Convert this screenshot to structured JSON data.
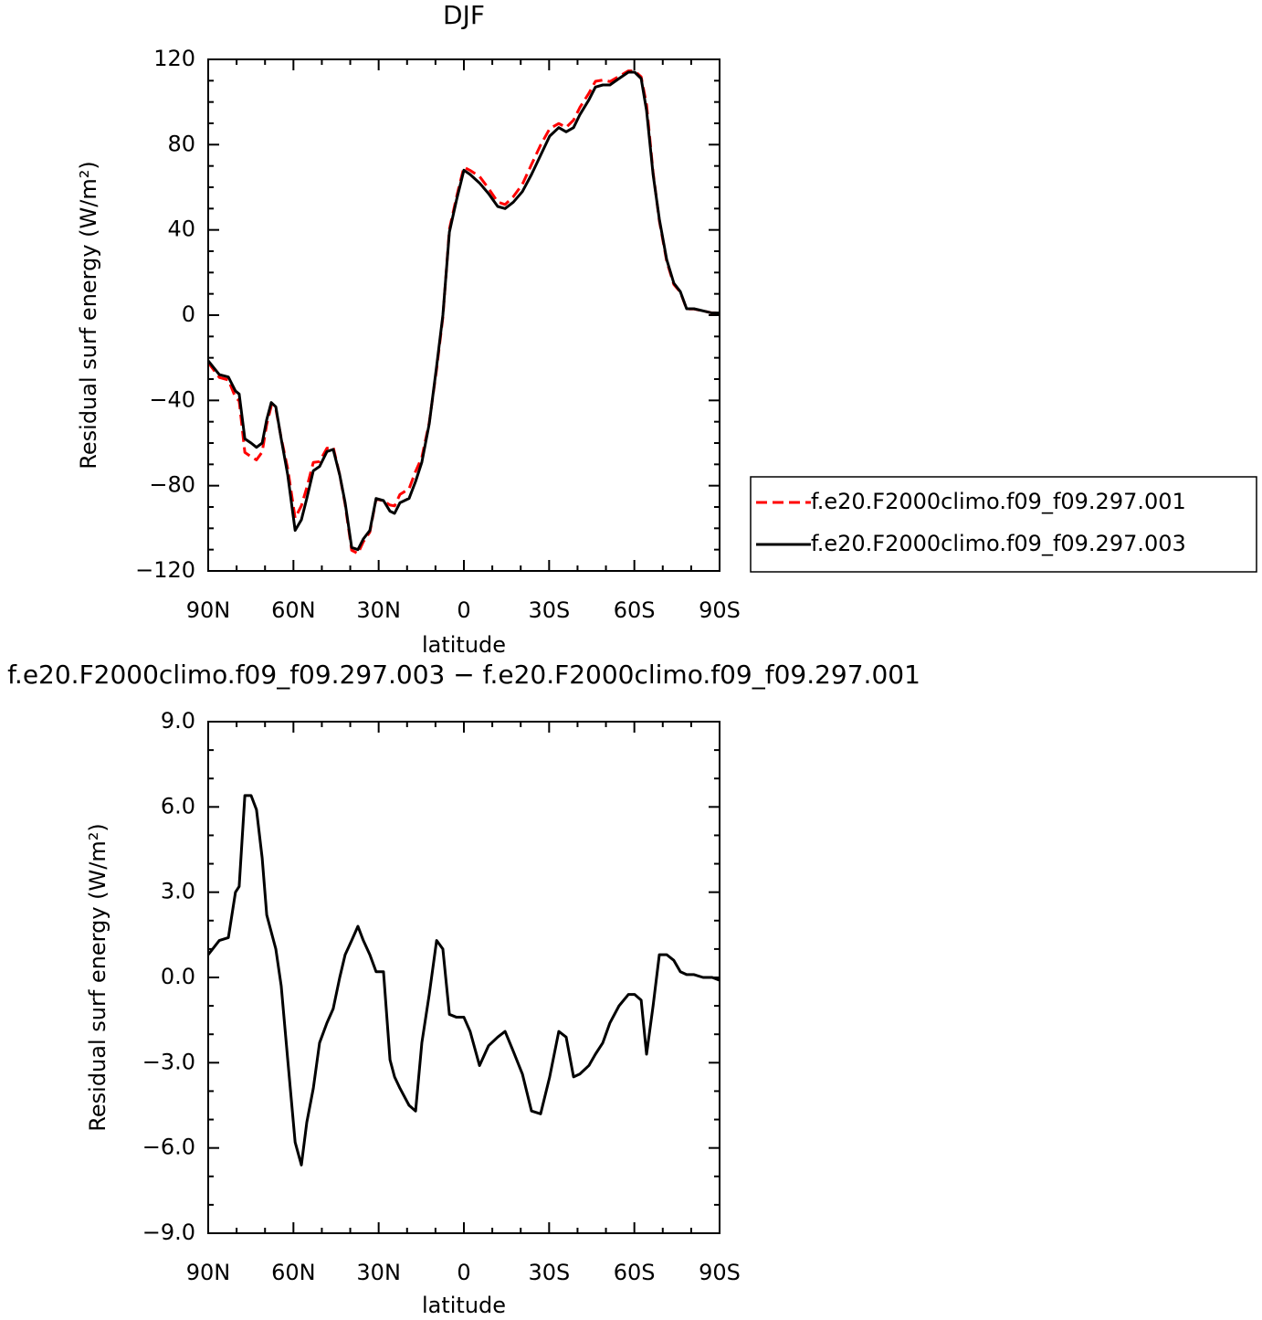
{
  "chart_data": [
    {
      "type": "line",
      "title": "DJF",
      "xlabel": "latitude",
      "ylabel": "Residual surf energy (W/m²)",
      "x": [
        90,
        86.1,
        82.9,
        80.4,
        79.1,
        77.1,
        74.9,
        73.0,
        71.0,
        69.4,
        67.8,
        66.2,
        64.3,
        62.0,
        59.4,
        57.2,
        55.3,
        53.0,
        50.8,
        48.2,
        46.0,
        43.7,
        41.8,
        39.5,
        37.3,
        35.4,
        33.1,
        30.9,
        28.3,
        26.0,
        24.4,
        22.5,
        20.9,
        19.3,
        17.0,
        14.8,
        12.2,
        9.6,
        7.4,
        5.1,
        2.6,
        0,
        -2.2,
        -5.5,
        -8.7,
        -11.9,
        -14.5,
        -17.4,
        -20.6,
        -23.8,
        -27.0,
        -30.2,
        -33.4,
        -36.0,
        -38.6,
        -40.8,
        -44.0,
        -46.3,
        -48.9,
        -51.4,
        -54.6,
        -57.9,
        -60.1,
        -62.4,
        -64.3,
        -66.6,
        -68.8,
        -71.4,
        -73.9,
        -76.2,
        -78.4,
        -81.0,
        -84.2,
        -87.4,
        -90
      ],
      "series": [
        {
          "name": "f.e20.F2000climo.f09_f09.297.001",
          "color": "#ff0000",
          "dash": true,
          "values": [
            -22.2,
            -29.2,
            -30.4,
            -38.6,
            -40.2,
            -64.4,
            -66.4,
            -67.9,
            -64.2,
            -51.2,
            -42.6,
            -44,
            -57.7,
            -72.1,
            -95.2,
            -89.4,
            -80.9,
            -69.1,
            -68.7,
            -62.4,
            -61.9,
            -75,
            -88.8,
            -110.3,
            -111.8,
            -106.3,
            -101.8,
            -86.2,
            -87.2,
            -89.1,
            -89.5,
            -84.1,
            -82.8,
            -81.5,
            -73.3,
            -66.7,
            -50.4,
            -25.3,
            -1,
            40.3,
            55.4,
            69.4,
            67.9,
            65.1,
            59.4,
            53.1,
            51.9,
            55.6,
            61.4,
            70.7,
            79.8,
            87.5,
            89.9,
            88.1,
            91.5,
            97.4,
            104.1,
            109.7,
            110.3,
            109.6,
            112,
            114.6,
            114.6,
            111.8,
            98.7,
            67,
            44.2,
            25.2,
            14.4,
            10.8,
            2.9,
            2.9,
            2,
            1,
            1.1
          ]
        },
        {
          "name": "f.e20.F2000climo.f09_f09.297.003",
          "color": "#000000",
          "dash": false,
          "values": [
            -21.4,
            -27.9,
            -29,
            -35.6,
            -37,
            -58,
            -60,
            -62,
            -60,
            -49,
            -41,
            -43,
            -58,
            -75,
            -101,
            -96,
            -86,
            -73,
            -71,
            -64,
            -63,
            -75,
            -88,
            -109,
            -110,
            -105,
            -101,
            -86,
            -87,
            -92,
            -93,
            -88,
            -87,
            -86,
            -78,
            -69,
            -51,
            -24,
            0,
            39,
            54,
            68,
            66,
            62,
            57,
            51,
            50,
            53,
            58,
            66,
            75,
            84,
            88,
            86,
            88,
            94,
            101,
            107,
            108,
            108,
            111,
            114,
            114,
            111,
            96,
            66,
            45,
            26,
            15,
            11,
            3,
            3,
            2,
            1,
            1
          ]
        }
      ],
      "xlim": [
        90,
        -90
      ],
      "xticks": [
        {
          "value": 90,
          "label": "90N"
        },
        {
          "value": 60,
          "label": "60N"
        },
        {
          "value": 30,
          "label": "30N"
        },
        0,
        {
          "value": -30,
          "label": "30S"
        },
        {
          "value": -60,
          "label": "60S"
        },
        {
          "value": -90,
          "label": "90S"
        }
      ],
      "xminorticks": [
        80,
        70,
        50,
        40,
        20,
        10,
        -10,
        -20,
        -40,
        -50,
        -70,
        -80
      ],
      "ylim": [
        -120,
        120
      ],
      "yticks": [
        {
          "value": -120,
          "label": "−120"
        },
        {
          "value": -80,
          "label": "−80"
        },
        {
          "value": -40,
          "label": "−40"
        },
        0,
        40,
        80,
        120
      ],
      "yminorticks": [
        110,
        100,
        90,
        70,
        60,
        50,
        30,
        20,
        10,
        -10,
        -20,
        -30,
        -50,
        -60,
        -70,
        -90,
        -100,
        -110
      ],
      "legend": "outside-right"
    },
    {
      "type": "line",
      "title": "f.e20.F2000climo.f09_f09.297.003 − f.e20.F2000climo.f09_f09.297.001",
      "xlabel": "latitude",
      "ylabel": "Residual surf energy (W/m²)",
      "x": [
        90,
        86.1,
        82.9,
        80.4,
        79.1,
        77.1,
        74.9,
        73.0,
        71.0,
        69.4,
        67.8,
        66.2,
        64.3,
        62.0,
        59.4,
        57.2,
        55.3,
        53.0,
        50.8,
        48.2,
        46.0,
        43.7,
        41.8,
        39.5,
        37.3,
        35.4,
        33.1,
        30.9,
        28.3,
        26.0,
        24.4,
        22.5,
        20.9,
        19.3,
        17.0,
        14.8,
        12.2,
        9.6,
        7.4,
        5.1,
        2.6,
        0,
        -2.2,
        -5.5,
        -8.7,
        -11.9,
        -14.5,
        -17.4,
        -20.6,
        -23.8,
        -27.0,
        -30.2,
        -33.4,
        -36.0,
        -38.6,
        -40.8,
        -44.0,
        -46.3,
        -48.9,
        -51.4,
        -54.6,
        -57.9,
        -60.1,
        -62.4,
        -64.3,
        -66.6,
        -68.8,
        -71.4,
        -73.9,
        -76.2,
        -78.4,
        -81.0,
        -84.2,
        -87.4,
        -90
      ],
      "values": [
        0.8,
        1.3,
        1.4,
        3.0,
        3.2,
        6.4,
        6.4,
        5.9,
        4.2,
        2.2,
        1.6,
        1.0,
        -0.3,
        -2.9,
        -5.8,
        -6.6,
        -5.1,
        -3.9,
        -2.3,
        -1.6,
        -1.1,
        0,
        0.8,
        1.3,
        1.8,
        1.3,
        0.8,
        0.2,
        0.2,
        -2.9,
        -3.5,
        -3.9,
        -4.2,
        -4.5,
        -4.7,
        -2.3,
        -0.6,
        1.3,
        1.0,
        -1.3,
        -1.4,
        -1.4,
        -1.9,
        -3.1,
        -2.4,
        -2.1,
        -1.9,
        -2.6,
        -3.4,
        -4.7,
        -4.8,
        -3.5,
        -1.9,
        -2.1,
        -3.5,
        -3.4,
        -3.1,
        -2.7,
        -2.3,
        -1.6,
        -1.0,
        -0.6,
        -0.6,
        -0.8,
        -2.7,
        -1.0,
        0.8,
        0.8,
        0.6,
        0.2,
        0.1,
        0.1,
        0,
        0,
        -0.1
      ],
      "color": "#000000",
      "xlim": [
        90,
        -90
      ],
      "xticks": [
        {
          "value": 90,
          "label": "90N"
        },
        {
          "value": 60,
          "label": "60N"
        },
        {
          "value": 30,
          "label": "30N"
        },
        0,
        {
          "value": -30,
          "label": "30S"
        },
        {
          "value": -60,
          "label": "60S"
        },
        {
          "value": -90,
          "label": "90S"
        }
      ],
      "xminorticks": [
        80,
        70,
        50,
        40,
        20,
        10,
        -10,
        -20,
        -40,
        -50,
        -70,
        -80
      ],
      "ylim": [
        -9,
        9
      ],
      "yticks": [
        {
          "value": -9,
          "label": "−9.0"
        },
        {
          "value": -6,
          "label": "−6.0"
        },
        {
          "value": -3,
          "label": "−3.0"
        },
        {
          "value": 0,
          "label": "0.0"
        },
        {
          "value": 3,
          "label": "3.0"
        },
        {
          "value": 6,
          "label": "6.0"
        },
        {
          "value": 9,
          "label": "9.0"
        }
      ],
      "yminorticks": [
        8,
        7,
        5,
        4,
        2,
        1,
        -1,
        -2,
        -4,
        -5,
        -7,
        -8
      ]
    }
  ]
}
